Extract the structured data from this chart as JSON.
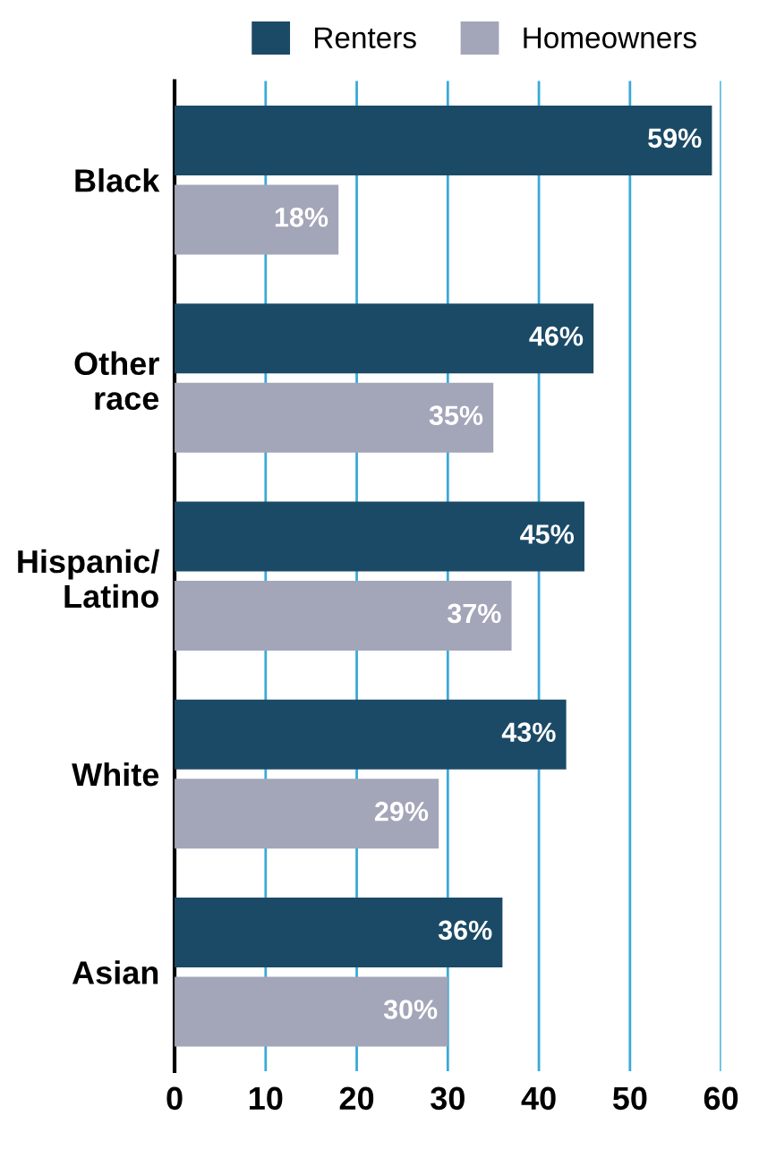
{
  "chart_data": {
    "type": "bar",
    "orientation": "horizontal",
    "categories": [
      "Black",
      "Other\nrace",
      "Hispanic/\nLatino",
      "White",
      "Asian"
    ],
    "series": [
      {
        "name": "Renters",
        "color": "#1b4a66",
        "values": [
          59,
          46,
          45,
          43,
          36
        ],
        "value_labels": [
          "59%",
          "46%",
          "45%",
          "43%",
          "36%"
        ]
      },
      {
        "name": "Homeowners",
        "color": "#a3a5b8",
        "values": [
          18,
          35,
          37,
          29,
          30
        ],
        "value_labels": [
          "18%",
          "35%",
          "37%",
          "29%",
          "30%"
        ]
      }
    ],
    "xlim": [
      0,
      60
    ],
    "xticks": [
      0,
      10,
      20,
      30,
      40,
      50,
      60
    ],
    "grid": "x",
    "legend": "top"
  }
}
